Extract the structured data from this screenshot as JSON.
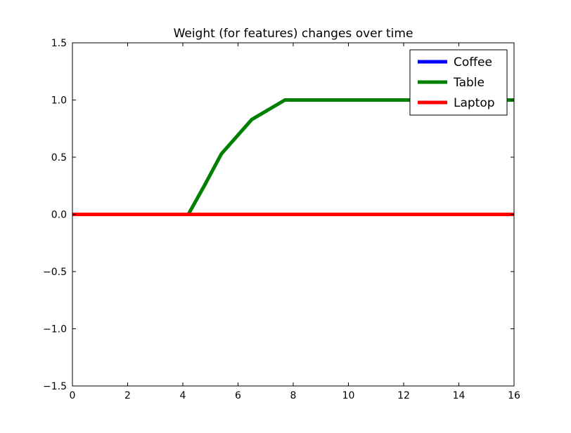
{
  "chart_data": {
    "type": "line",
    "title": "Weight (for features) changes over time",
    "xlabel": "",
    "ylabel": "",
    "xlim": [
      0,
      16
    ],
    "ylim": [
      -1.5,
      1.5
    ],
    "xticks": [
      0,
      2,
      4,
      6,
      8,
      10,
      12,
      14,
      16
    ],
    "xtick_labels": [
      "0",
      "2",
      "4",
      "6",
      "8",
      "10",
      "12",
      "14",
      "16"
    ],
    "yticks": [
      -1.5,
      -1.0,
      -0.5,
      0.0,
      0.5,
      1.0,
      1.5
    ],
    "ytick_labels": [
      "−1.5",
      "−1.0",
      "−0.5",
      "0.0",
      "0.5",
      "1.0",
      "1.5"
    ],
    "grid": false,
    "legend_position": "top-right",
    "series": [
      {
        "name": "Coffee",
        "color": "#0000ff",
        "x": [
          0,
          16
        ],
        "y": [
          0,
          0
        ]
      },
      {
        "name": "Table",
        "color": "#008000",
        "x": [
          0,
          4.2,
          4.8,
          5.4,
          6.5,
          7.7,
          16
        ],
        "y": [
          0,
          0,
          0.26,
          0.53,
          0.83,
          1.0,
          1.0
        ]
      },
      {
        "name": "Laptop",
        "color": "#ff0000",
        "x": [
          0,
          16
        ],
        "y": [
          0,
          0
        ]
      }
    ]
  }
}
